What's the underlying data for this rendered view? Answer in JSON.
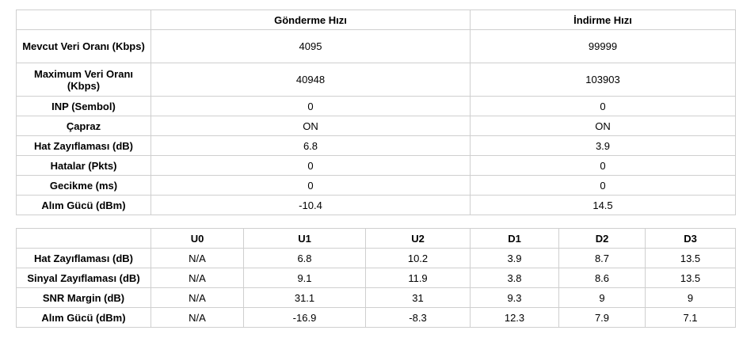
{
  "rate_table": {
    "columns": [
      "",
      "Gönderme Hızı",
      "İndirme Hızı"
    ],
    "rows": [
      {
        "label": "Mevcut Veri Oranı (Kbps)",
        "values": [
          "4095",
          "99999"
        ]
      },
      {
        "label": "Maximum Veri Oranı (Kbps)",
        "values": [
          "40948",
          "103903"
        ]
      },
      {
        "label": "INP (Sembol)",
        "values": [
          "0",
          "0"
        ]
      },
      {
        "label": "Çapraz",
        "values": [
          "ON",
          "ON"
        ]
      },
      {
        "label": "Hat Zayıflaması (dB)",
        "values": [
          "6.8",
          "3.9"
        ]
      },
      {
        "label": "Hatalar (Pkts)",
        "values": [
          "0",
          "0"
        ]
      },
      {
        "label": "Gecikme (ms)",
        "values": [
          "0",
          "0"
        ]
      },
      {
        "label": "Alım Gücü (dBm)",
        "values": [
          "-10.4",
          "14.5"
        ]
      }
    ]
  },
  "band_table": {
    "columns": [
      "",
      "U0",
      "U1",
      "U2",
      "D1",
      "D2",
      "D3"
    ],
    "rows": [
      {
        "label": "Hat Zayıflaması (dB)",
        "values": [
          "N/A",
          "6.8",
          "10.2",
          "3.9",
          "8.7",
          "13.5"
        ]
      },
      {
        "label": "Sinyal Zayıflaması (dB)",
        "values": [
          "N/A",
          "9.1",
          "11.9",
          "3.8",
          "8.6",
          "13.5"
        ]
      },
      {
        "label": "SNR Margin (dB)",
        "values": [
          "N/A",
          "31.1",
          "31",
          "9.3",
          "9",
          "9"
        ]
      },
      {
        "label": "Alım Gücü (dBm)",
        "values": [
          "N/A",
          "-16.9",
          "-8.3",
          "12.3",
          "7.9",
          "7.1"
        ]
      }
    ]
  }
}
